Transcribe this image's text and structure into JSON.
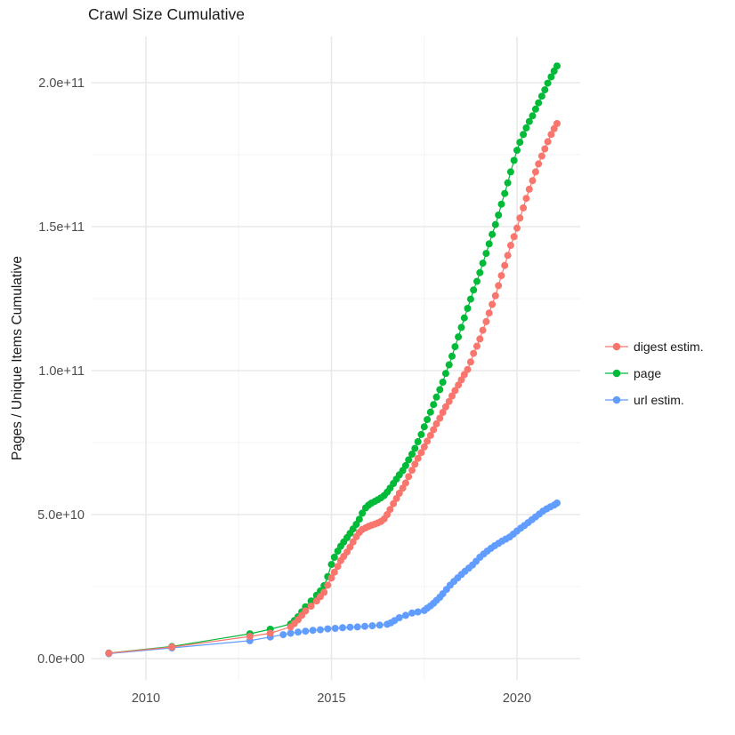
{
  "title": "Crawl Size Cumulative",
  "y_axis": {
    "label": "Pages / Unique Items Cumulative"
  },
  "legend": {
    "items": [
      {
        "label": "digest estim.",
        "color": "#F8766D"
      },
      {
        "label": "page",
        "color": "#00BA38"
      },
      {
        "label": "url estim.",
        "color": "#619CFF"
      }
    ]
  },
  "colors": {
    "grid_major": "#e8e8e8",
    "grid_minor": "#f3f3f3",
    "tick_text": "#4d4d4d",
    "title_text": "#1a1a1a",
    "background": "#ffffff"
  },
  "chart_data": {
    "type": "scatter",
    "title": "Crawl Size Cumulative",
    "xlabel": "",
    "ylabel": "Pages / Unique Items Cumulative",
    "legend_position": "right",
    "grid": true,
    "xlim": [
      2008.5,
      2021.7
    ],
    "ylim": [
      0,
      216000000000.0
    ],
    "y_values_unit": "billions (1e9 items)",
    "x_values_unit": "decimal year",
    "x_axis": {
      "major_ticks": [
        2010,
        2015,
        2020
      ],
      "tick_labels": [
        "2010",
        "2015",
        "2020"
      ],
      "minor_ticks": [
        2012.5,
        2017.5
      ]
    },
    "y_axis": {
      "major_ticks_e9": [
        0,
        50,
        100,
        150,
        200
      ],
      "tick_labels": [
        "0.0e+00",
        "5.0e+10",
        "1.0e+11",
        "1.5e+11",
        "2.0e+11"
      ],
      "minor_ticks_e9": [
        25,
        75,
        125,
        175
      ]
    },
    "series": [
      {
        "name": "digest estim.",
        "color": "#F8766D",
        "z": 3,
        "points_year_e9": [
          [
            2009.0,
            1.85
          ],
          [
            2010.7,
            4.0
          ],
          [
            2012.8,
            7.7
          ],
          [
            2013.35,
            8.8
          ],
          [
            2013.9,
            11.0
          ],
          [
            2014.0,
            12.2
          ],
          [
            2014.1,
            13.5
          ],
          [
            2014.2,
            15.0
          ],
          [
            2014.3,
            16.5
          ],
          [
            2014.45,
            18.2
          ],
          [
            2014.6,
            20.0
          ],
          [
            2014.7,
            21.5
          ],
          [
            2014.8,
            23.0
          ],
          [
            2014.9,
            25.5
          ],
          [
            2015.0,
            28.0
          ],
          [
            2015.08,
            30.0
          ],
          [
            2015.17,
            32.0
          ],
          [
            2015.25,
            34.0
          ],
          [
            2015.33,
            35.5
          ],
          [
            2015.42,
            37.0
          ],
          [
            2015.5,
            38.7
          ],
          [
            2015.58,
            40.5
          ],
          [
            2015.67,
            42.3
          ],
          [
            2015.75,
            43.8
          ],
          [
            2015.83,
            44.8
          ],
          [
            2015.92,
            45.4
          ],
          [
            2016.0,
            45.9
          ],
          [
            2016.08,
            46.3
          ],
          [
            2016.17,
            46.7
          ],
          [
            2016.25,
            47.1
          ],
          [
            2016.33,
            47.6
          ],
          [
            2016.42,
            48.5
          ],
          [
            2016.5,
            50.0
          ],
          [
            2016.58,
            51.8
          ],
          [
            2016.67,
            53.8
          ],
          [
            2016.75,
            55.6
          ],
          [
            2016.83,
            57.4
          ],
          [
            2016.92,
            59.2
          ],
          [
            2017.0,
            61.0
          ],
          [
            2017.08,
            63.2
          ],
          [
            2017.17,
            65.4
          ],
          [
            2017.25,
            67.5
          ],
          [
            2017.33,
            69.5
          ],
          [
            2017.42,
            71.5
          ],
          [
            2017.5,
            73.5
          ],
          [
            2017.58,
            75.5
          ],
          [
            2017.67,
            77.5
          ],
          [
            2017.75,
            79.5
          ],
          [
            2017.83,
            81.5
          ],
          [
            2017.92,
            83.5
          ],
          [
            2018.0,
            85.5
          ],
          [
            2018.08,
            87.4
          ],
          [
            2018.17,
            89.3
          ],
          [
            2018.25,
            91.2
          ],
          [
            2018.33,
            93.1
          ],
          [
            2018.42,
            95.0
          ],
          [
            2018.5,
            96.8
          ],
          [
            2018.58,
            98.6
          ],
          [
            2018.67,
            100.4
          ],
          [
            2018.75,
            103.0
          ],
          [
            2018.83,
            106.0
          ],
          [
            2018.92,
            108.5
          ],
          [
            2019.0,
            111.0
          ],
          [
            2019.08,
            114.0
          ],
          [
            2019.17,
            117.0
          ],
          [
            2019.25,
            120.0
          ],
          [
            2019.33,
            123.0
          ],
          [
            2019.42,
            126.0
          ],
          [
            2019.5,
            129.5
          ],
          [
            2019.58,
            133.0
          ],
          [
            2019.67,
            136.5
          ],
          [
            2019.75,
            140.0
          ],
          [
            2019.83,
            143.5
          ],
          [
            2019.92,
            146.5
          ],
          [
            2020.0,
            149.5
          ],
          [
            2020.08,
            153.0
          ],
          [
            2020.17,
            156.5
          ],
          [
            2020.25,
            159.8
          ],
          [
            2020.33,
            163.0
          ],
          [
            2020.42,
            166.0
          ],
          [
            2020.5,
            169.0
          ],
          [
            2020.58,
            171.8
          ],
          [
            2020.67,
            174.5
          ],
          [
            2020.75,
            177.0
          ],
          [
            2020.83,
            179.5
          ],
          [
            2020.92,
            182.0
          ],
          [
            2021.0,
            184.0
          ],
          [
            2021.08,
            185.8
          ]
        ]
      },
      {
        "name": "page",
        "color": "#00BA38",
        "z": 1,
        "points_year_e9": [
          [
            2009.0,
            1.9
          ],
          [
            2010.7,
            4.2
          ],
          [
            2012.8,
            8.6
          ],
          [
            2013.35,
            10.2
          ],
          [
            2013.9,
            12.0
          ],
          [
            2014.0,
            13.2
          ],
          [
            2014.1,
            14.5
          ],
          [
            2014.2,
            16.2
          ],
          [
            2014.3,
            18.0
          ],
          [
            2014.45,
            20.0
          ],
          [
            2014.6,
            22.0
          ],
          [
            2014.7,
            23.5
          ],
          [
            2014.8,
            25.3
          ],
          [
            2014.9,
            28.5
          ],
          [
            2015.0,
            32.7
          ],
          [
            2015.08,
            35.2
          ],
          [
            2015.17,
            37.3
          ],
          [
            2015.25,
            39.0
          ],
          [
            2015.33,
            40.5
          ],
          [
            2015.42,
            42.0
          ],
          [
            2015.5,
            43.5
          ],
          [
            2015.58,
            45.0
          ],
          [
            2015.67,
            46.6
          ],
          [
            2015.75,
            48.4
          ],
          [
            2015.83,
            50.5
          ],
          [
            2015.92,
            52.3
          ],
          [
            2016.0,
            53.3
          ],
          [
            2016.08,
            54.0
          ],
          [
            2016.17,
            54.6
          ],
          [
            2016.25,
            55.2
          ],
          [
            2016.33,
            55.8
          ],
          [
            2016.42,
            56.6
          ],
          [
            2016.5,
            57.8
          ],
          [
            2016.58,
            59.2
          ],
          [
            2016.67,
            60.8
          ],
          [
            2016.75,
            62.3
          ],
          [
            2016.83,
            63.8
          ],
          [
            2016.92,
            65.3
          ],
          [
            2017.0,
            67.0
          ],
          [
            2017.08,
            69.0
          ],
          [
            2017.17,
            71.0
          ],
          [
            2017.25,
            73.0
          ],
          [
            2017.33,
            75.3
          ],
          [
            2017.42,
            77.8
          ],
          [
            2017.5,
            80.5
          ],
          [
            2017.58,
            83.0
          ],
          [
            2017.67,
            85.6
          ],
          [
            2017.75,
            88.2
          ],
          [
            2017.83,
            90.8
          ],
          [
            2017.92,
            93.4
          ],
          [
            2018.0,
            96.0
          ],
          [
            2018.08,
            99.0
          ],
          [
            2018.17,
            102.0
          ],
          [
            2018.25,
            105.0
          ],
          [
            2018.33,
            108.3
          ],
          [
            2018.42,
            111.7
          ],
          [
            2018.5,
            115.0
          ],
          [
            2018.58,
            118.3
          ],
          [
            2018.67,
            121.6
          ],
          [
            2018.75,
            124.8
          ],
          [
            2018.83,
            128.0
          ],
          [
            2018.92,
            131.0
          ],
          [
            2019.0,
            134.0
          ],
          [
            2019.08,
            137.3
          ],
          [
            2019.17,
            140.7
          ],
          [
            2019.25,
            144.0
          ],
          [
            2019.33,
            147.3
          ],
          [
            2019.42,
            150.7
          ],
          [
            2019.5,
            154.0
          ],
          [
            2019.58,
            157.8
          ],
          [
            2019.67,
            161.5
          ],
          [
            2019.75,
            165.2
          ],
          [
            2019.83,
            169.0
          ],
          [
            2019.92,
            173.0
          ],
          [
            2020.0,
            176.5
          ],
          [
            2020.08,
            179.3
          ],
          [
            2020.17,
            182.0
          ],
          [
            2020.25,
            184.3
          ],
          [
            2020.33,
            186.5
          ],
          [
            2020.42,
            188.5
          ],
          [
            2020.5,
            190.8
          ],
          [
            2020.58,
            193.0
          ],
          [
            2020.67,
            195.3
          ],
          [
            2020.75,
            197.5
          ],
          [
            2020.83,
            199.8
          ],
          [
            2020.92,
            202.0
          ],
          [
            2021.0,
            204.0
          ],
          [
            2021.08,
            205.8
          ]
        ]
      },
      {
        "name": "url estim.",
        "color": "#619CFF",
        "z": 2,
        "points_year_e9": [
          [
            2009.0,
            1.7
          ],
          [
            2010.7,
            3.7
          ],
          [
            2012.8,
            6.2
          ],
          [
            2013.35,
            7.5
          ],
          [
            2013.7,
            8.3
          ],
          [
            2013.9,
            8.8
          ],
          [
            2014.1,
            9.2
          ],
          [
            2014.3,
            9.5
          ],
          [
            2014.5,
            9.8
          ],
          [
            2014.7,
            10.0
          ],
          [
            2014.9,
            10.3
          ],
          [
            2015.1,
            10.5
          ],
          [
            2015.3,
            10.7
          ],
          [
            2015.5,
            10.9
          ],
          [
            2015.7,
            11.0
          ],
          [
            2015.9,
            11.2
          ],
          [
            2016.1,
            11.4
          ],
          [
            2016.3,
            11.6
          ],
          [
            2016.5,
            11.9
          ],
          [
            2016.6,
            12.4
          ],
          [
            2016.7,
            13.2
          ],
          [
            2016.83,
            14.2
          ],
          [
            2017.0,
            15.0
          ],
          [
            2017.17,
            15.8
          ],
          [
            2017.33,
            16.2
          ],
          [
            2017.5,
            16.7
          ],
          [
            2017.58,
            17.5
          ],
          [
            2017.67,
            18.3
          ],
          [
            2017.75,
            19.2
          ],
          [
            2017.83,
            20.2
          ],
          [
            2017.92,
            21.3
          ],
          [
            2018.0,
            22.5
          ],
          [
            2018.1,
            24.0
          ],
          [
            2018.2,
            25.5
          ],
          [
            2018.3,
            26.8
          ],
          [
            2018.4,
            28.0
          ],
          [
            2018.5,
            29.2
          ],
          [
            2018.6,
            30.3
          ],
          [
            2018.7,
            31.4
          ],
          [
            2018.8,
            32.5
          ],
          [
            2018.9,
            33.8
          ],
          [
            2019.0,
            35.2
          ],
          [
            2019.1,
            36.3
          ],
          [
            2019.2,
            37.3
          ],
          [
            2019.3,
            38.3
          ],
          [
            2019.4,
            39.2
          ],
          [
            2019.5,
            40.0
          ],
          [
            2019.6,
            40.8
          ],
          [
            2019.7,
            41.5
          ],
          [
            2019.8,
            42.2
          ],
          [
            2019.9,
            43.2
          ],
          [
            2020.0,
            44.3
          ],
          [
            2020.1,
            45.3
          ],
          [
            2020.2,
            46.2
          ],
          [
            2020.3,
            47.2
          ],
          [
            2020.4,
            48.2
          ],
          [
            2020.5,
            49.2
          ],
          [
            2020.6,
            50.2
          ],
          [
            2020.7,
            51.2
          ],
          [
            2020.8,
            52.0
          ],
          [
            2020.9,
            52.7
          ],
          [
            2021.0,
            53.3
          ],
          [
            2021.08,
            54.0
          ]
        ]
      }
    ]
  }
}
